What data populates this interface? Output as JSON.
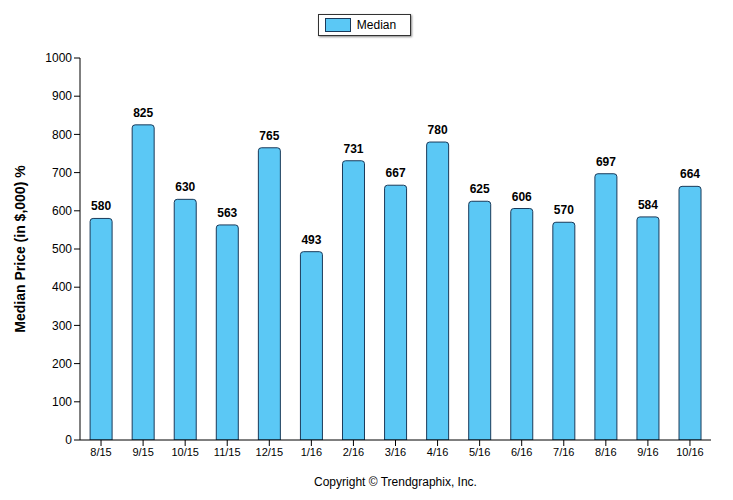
{
  "chart_data": {
    "type": "bar",
    "ylabel": "Median Price (in $,000) %",
    "xlabel": "Copyright © Trendgraphix, Inc.",
    "categories": [
      "8/15",
      "9/15",
      "10/15",
      "11/15",
      "12/15",
      "1/16",
      "2/16",
      "3/16",
      "4/16",
      "5/16",
      "6/16",
      "7/16",
      "8/16",
      "9/16",
      "10/16"
    ],
    "series": [
      {
        "name": "Median",
        "color": "#5bc8f5",
        "values": [
          580,
          825,
          630,
          563,
          765,
          493,
          731,
          667,
          780,
          625,
          606,
          570,
          697,
          584,
          664
        ]
      }
    ],
    "ylim": [
      0,
      1000
    ],
    "yticks": [
      0,
      100,
      200,
      300,
      400,
      500,
      600,
      700,
      800,
      900,
      1000
    ],
    "grid": false,
    "legend": "top",
    "data_labels": true
  }
}
